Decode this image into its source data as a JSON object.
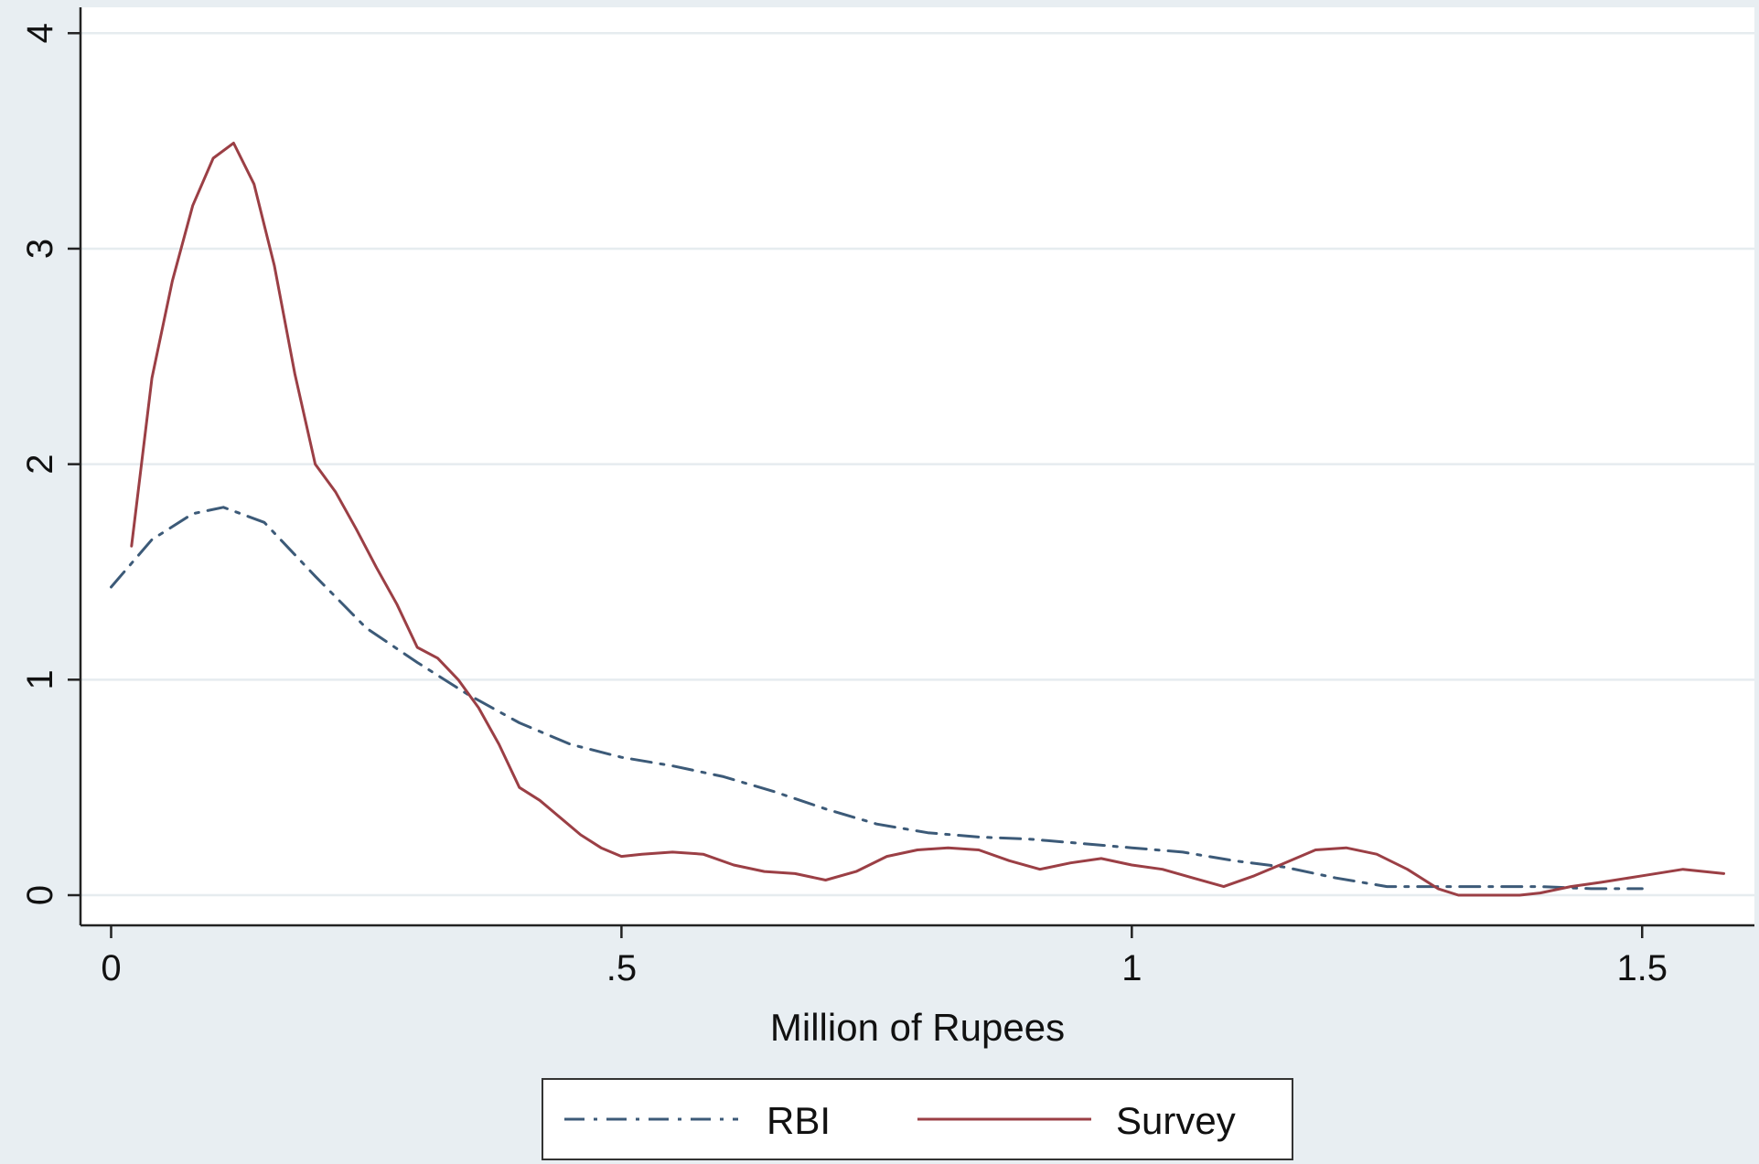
{
  "chart_data": {
    "type": "line",
    "title": "",
    "xlabel": "Million of Rupees",
    "ylabel": "",
    "xlim": [
      -0.03,
      1.61
    ],
    "ylim": [
      -0.14,
      4.12
    ],
    "x_ticks": [
      0,
      0.5,
      1,
      1.5
    ],
    "x_tick_labels": [
      "0",
      ".5",
      "1",
      "1.5"
    ],
    "y_ticks": [
      0,
      1,
      2,
      3,
      4
    ],
    "y_tick_labels": [
      "0",
      "1",
      "2",
      "3",
      "4"
    ],
    "grid": "horizontal",
    "legend_position": "bottom",
    "series": [
      {
        "name": "RBI",
        "color": "#3c5a78",
        "dash": "dash-dot",
        "x": [
          0,
          0.04,
          0.08,
          0.11,
          0.15,
          0.2,
          0.25,
          0.3,
          0.35,
          0.4,
          0.45,
          0.5,
          0.55,
          0.6,
          0.65,
          0.7,
          0.75,
          0.8,
          0.85,
          0.9,
          0.95,
          1.0,
          1.05,
          1.1,
          1.15,
          1.2,
          1.25,
          1.3,
          1.35,
          1.4,
          1.45,
          1.5
        ],
        "y": [
          1.43,
          1.65,
          1.77,
          1.8,
          1.73,
          1.48,
          1.24,
          1.08,
          0.93,
          0.8,
          0.7,
          0.64,
          0.6,
          0.55,
          0.48,
          0.4,
          0.33,
          0.29,
          0.27,
          0.26,
          0.24,
          0.22,
          0.2,
          0.16,
          0.13,
          0.08,
          0.04,
          0.04,
          0.04,
          0.04,
          0.03,
          0.03
        ]
      },
      {
        "name": "Survey",
        "color": "#9b3f45",
        "dash": "solid",
        "x": [
          0.02,
          0.04,
          0.06,
          0.08,
          0.1,
          0.12,
          0.14,
          0.16,
          0.18,
          0.2,
          0.22,
          0.24,
          0.26,
          0.28,
          0.3,
          0.32,
          0.34,
          0.36,
          0.38,
          0.4,
          0.42,
          0.44,
          0.46,
          0.48,
          0.5,
          0.52,
          0.55,
          0.58,
          0.61,
          0.64,
          0.67,
          0.7,
          0.73,
          0.76,
          0.79,
          0.82,
          0.85,
          0.88,
          0.91,
          0.94,
          0.97,
          1.0,
          1.03,
          1.06,
          1.09,
          1.12,
          1.15,
          1.18,
          1.21,
          1.24,
          1.27,
          1.3,
          1.32,
          1.35,
          1.38,
          1.4,
          1.43,
          1.46,
          1.5,
          1.54,
          1.58
        ],
        "y": [
          1.62,
          2.4,
          2.85,
          3.2,
          3.42,
          3.49,
          3.3,
          2.92,
          2.42,
          2.0,
          1.87,
          1.7,
          1.52,
          1.35,
          1.15,
          1.1,
          1.0,
          0.87,
          0.7,
          0.5,
          0.44,
          0.36,
          0.28,
          0.22,
          0.18,
          0.19,
          0.2,
          0.19,
          0.14,
          0.11,
          0.1,
          0.07,
          0.11,
          0.18,
          0.21,
          0.22,
          0.21,
          0.16,
          0.12,
          0.15,
          0.17,
          0.14,
          0.12,
          0.08,
          0.04,
          0.09,
          0.15,
          0.21,
          0.22,
          0.19,
          0.12,
          0.03,
          0.0,
          0.0,
          0.0,
          0.01,
          0.04,
          0.06,
          0.09,
          0.12,
          0.1
        ]
      }
    ]
  }
}
